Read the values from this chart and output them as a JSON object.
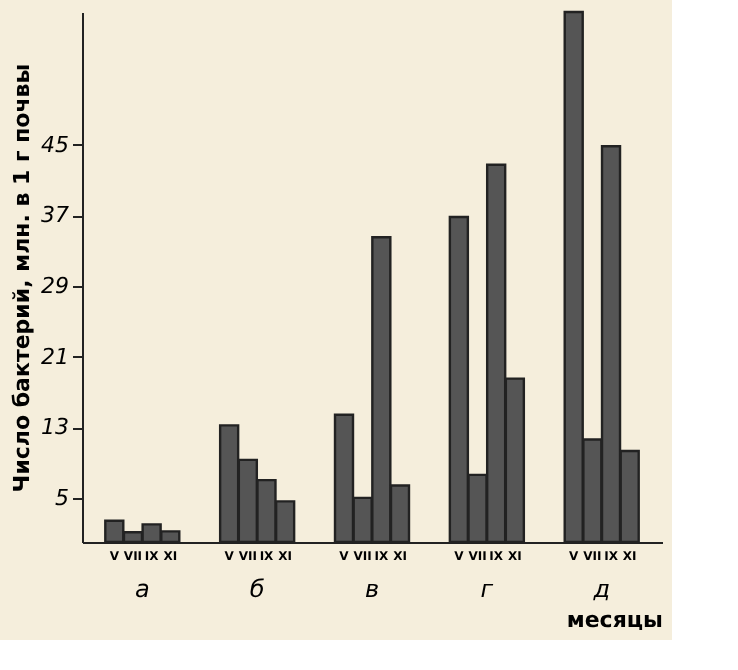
{
  "chart_data": {
    "type": "bar",
    "ylabel": "Число бактерий, млн. в 1 г почвы",
    "xlabel": "месяцы",
    "categories": [
      "а",
      "б",
      "в",
      "г",
      "д"
    ],
    "series": [
      {
        "name": "V",
        "color": "#555555",
        "values": [
          2.4,
          13.2,
          14.4,
          36.8,
          60
        ]
      },
      {
        "name": "VII",
        "color": "#555555",
        "values": [
          1.1,
          9.3,
          5,
          7.6,
          11.6
        ]
      },
      {
        "name": "IX",
        "color": "#555555",
        "values": [
          2,
          7,
          34.5,
          42.7,
          44.8
        ]
      },
      {
        "name": "XI",
        "color": "#555555",
        "values": [
          1.2,
          4.6,
          6.4,
          18.5,
          10.3
        ]
      }
    ],
    "ylim": [
      0,
      60
    ],
    "yticks": [
      5,
      13,
      21,
      29,
      37,
      45
    ],
    "grid": false
  }
}
